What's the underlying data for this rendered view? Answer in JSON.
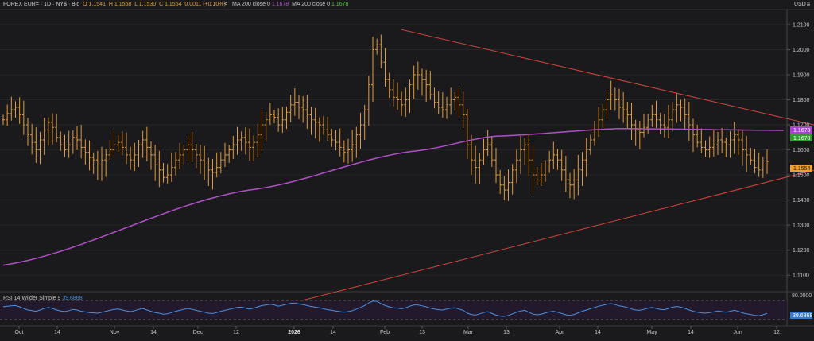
{
  "toolbar": {
    "symbol": "FOREX EUR= · 1D · NY$ · Bid",
    "open": "O 1.1541",
    "high": "H 1.1558",
    "low": "L 1.1530",
    "close": "C 1.1554",
    "change": "0.0011 (+0.10%)",
    "nav_icon": "<",
    "ma1_label": "MA 200 close 0",
    "ma1_value": "1.1678",
    "ma2_label": "MA 200 close 0",
    "ma2_value": "1.1678",
    "menu_icon": "≡",
    "currency": "USD"
  },
  "price_axis": {
    "ticks": [
      "1.2100",
      "1.2000",
      "1.1900",
      "1.1800",
      "1.1700",
      "1.1600",
      "1.1500",
      "1.1400",
      "1.1300",
      "1.1200",
      "1.1100"
    ],
    "ma_tag_1": "1.1678",
    "ma_tag_2": "1.1678",
    "last_tag": "1.1554"
  },
  "rsi": {
    "label": "RSI 14 Wilder Simple 9",
    "value": "39.6868",
    "axis_top": "80.0000",
    "axis_tag": "39.6868"
  },
  "time_axis": {
    "labels": [
      "Oct",
      "14",
      "Nov",
      "14",
      "Dec",
      "12",
      "2026",
      "14",
      "Feb",
      "13",
      "Mar",
      "13",
      "Apr",
      "14",
      "May",
      "14",
      "Jun",
      "12"
    ]
  },
  "colors": {
    "background": "#1a1a1c",
    "bars": "#e39a3b",
    "ma": "#b04fc8",
    "trendline": "#d0453c",
    "rsi": "#4a90e2",
    "last_price_tag": "#f0a030",
    "ma_tag_1": "#a845d8",
    "ma_tag_2": "#2e9e2e"
  },
  "chart_data": {
    "type": "ohlc",
    "y_range": [
      1.105,
      1.216
    ],
    "rsi_range": [
      20,
      80
    ],
    "closes": [
      1.172,
      1.1745,
      1.176,
      1.177,
      1.174,
      1.17,
      1.166,
      1.163,
      1.16,
      1.164,
      1.168,
      1.171,
      1.169,
      1.165,
      1.162,
      1.16,
      1.162,
      1.165,
      1.164,
      1.161,
      1.159,
      1.157,
      1.156,
      1.154,
      1.156,
      1.158,
      1.16,
      1.162,
      1.163,
      1.161,
      1.158,
      1.156,
      1.158,
      1.162,
      1.164,
      1.161,
      1.158,
      1.154,
      1.152,
      1.149,
      1.15,
      1.153,
      1.156,
      1.158,
      1.16,
      1.162,
      1.16,
      1.158,
      1.156,
      1.154,
      1.152,
      1.151,
      1.153,
      1.156,
      1.158,
      1.16,
      1.162,
      1.164,
      1.165,
      1.163,
      1.161,
      1.163,
      1.166,
      1.17,
      1.172,
      1.174,
      1.173,
      1.17,
      1.172,
      1.175,
      1.178,
      1.179,
      1.177,
      1.176,
      1.174,
      1.172,
      1.171,
      1.17,
      1.168,
      1.166,
      1.164,
      1.163,
      1.161,
      1.159,
      1.16,
      1.162,
      1.166,
      1.17,
      1.176,
      1.186,
      1.2,
      1.202,
      1.195,
      1.188,
      1.184,
      1.181,
      1.18,
      1.178,
      1.18,
      1.186,
      1.19,
      1.19,
      1.188,
      1.186,
      1.182,
      1.179,
      1.177,
      1.176,
      1.178,
      1.18,
      1.181,
      1.178,
      1.174,
      1.162,
      1.156,
      1.153,
      1.156,
      1.16,
      1.162,
      1.156,
      1.15,
      1.146,
      1.144,
      1.147,
      1.152,
      1.156,
      1.16,
      1.162,
      1.156,
      1.15,
      1.148,
      1.15,
      1.154,
      1.156,
      1.158,
      1.156,
      1.152,
      1.148,
      1.146,
      1.148,
      1.152,
      1.156,
      1.16,
      1.164,
      1.168,
      1.172,
      1.176,
      1.18,
      1.182,
      1.18,
      1.177,
      1.176,
      1.174,
      1.17,
      1.168,
      1.167,
      1.169,
      1.172,
      1.174,
      1.172,
      1.17,
      1.169,
      1.172,
      1.176,
      1.178,
      1.177,
      1.174,
      1.17,
      1.166,
      1.163,
      1.161,
      1.16,
      1.161,
      1.162,
      1.164,
      1.163,
      1.162,
      1.164,
      1.166,
      1.164,
      1.16,
      1.158,
      1.156,
      1.153,
      1.152,
      1.154,
      1.1554
    ],
    "ma200": {
      "start": 1.114,
      "points": [
        [
          0,
          1.114
        ],
        [
          60,
          1.144
        ],
        [
          100,
          1.1595
        ],
        [
          120,
          1.1655
        ],
        [
          150,
          1.1685
        ],
        [
          190,
          1.1678
        ]
      ]
    },
    "trendlines": [
      {
        "name": "resistance",
        "from": [
          97,
          1.208
        ],
        "to": [
          200,
          1.169
        ]
      },
      {
        "name": "support",
        "from": [
          73,
          1.1
        ],
        "to": [
          200,
          1.153
        ]
      }
    ],
    "rsi": [
      60,
      62,
      63,
      64,
      60,
      55,
      50,
      48,
      46,
      50,
      55,
      58,
      55,
      50,
      47,
      45,
      48,
      52,
      50,
      46,
      44,
      42,
      41,
      40,
      43,
      46,
      49,
      52,
      53,
      50,
      47,
      45,
      48,
      52,
      55,
      50,
      46,
      42,
      40,
      37,
      38,
      42,
      46,
      49,
      52,
      55,
      52,
      49,
      46,
      43,
      40,
      39,
      42,
      46,
      49,
      52,
      55,
      58,
      59,
      56,
      53,
      56,
      60,
      64,
      66,
      68,
      66,
      62,
      65,
      68,
      71,
      72,
      69,
      67,
      64,
      61,
      59,
      57,
      54,
      51,
      49,
      47,
      45,
      43,
      45,
      48,
      53,
      58,
      64,
      72,
      78,
      77,
      70,
      64,
      60,
      57,
      56,
      54,
      57,
      62,
      66,
      66,
      63,
      60,
      56,
      53,
      51,
      50,
      53,
      56,
      57,
      53,
      49,
      40,
      36,
      34,
      38,
      42,
      45,
      39,
      34,
      31,
      30,
      33,
      38,
      43,
      47,
      49,
      43,
      37,
      35,
      37,
      41,
      44,
      46,
      43,
      39,
      35,
      33,
      36,
      41,
      46,
      50,
      54,
      58,
      62,
      65,
      68,
      70,
      67,
      63,
      61,
      58,
      53,
      50,
      49,
      52,
      56,
      58,
      55,
      52,
      51,
      55,
      59,
      61,
      59,
      55,
      50,
      46,
      43,
      41,
      40,
      42,
      44,
      47,
      45,
      43,
      46,
      49,
      46,
      41,
      38,
      36,
      33,
      32,
      35,
      39.69
    ]
  }
}
